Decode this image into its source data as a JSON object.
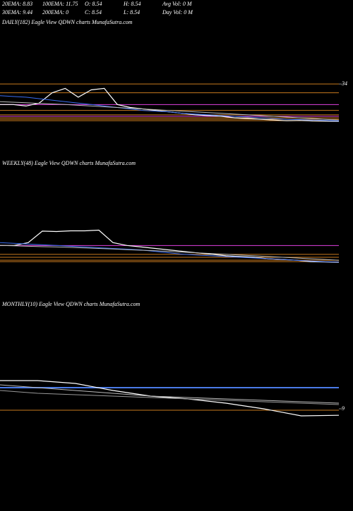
{
  "header": {
    "row1": [
      "20EMA: 8.83",
      "100EMA: 11.75",
      "O: 8.54",
      "H: 8.54",
      "Avg Vol: 0  M"
    ],
    "row2": [
      "30EMA: 9.44",
      "200EMA: 0",
      "C: 8.54",
      "L: 8.54",
      "Day Vol: 0  M"
    ]
  },
  "chart_data": [
    {
      "type": "line",
      "title": "DAILY(182) Eagle  View  QDWN  charts MunafaSutra.com",
      "ylim": [
        0,
        72
      ],
      "yticks": [
        34
      ],
      "levels": [
        {
          "color": "#c87a1e",
          "value": 34
        },
        {
          "color": "#c87a1e",
          "value": 28
        },
        {
          "color": "#e040e0",
          "value": 20
        },
        {
          "color": "#c87a1e",
          "value": 16
        },
        {
          "color": "#c87a1e",
          "value": 13
        },
        {
          "color": "#e040e0",
          "value": 12
        },
        {
          "color": "#c87a1e",
          "value": 11
        },
        {
          "color": "#c87a1e",
          "value": 10
        },
        {
          "color": "#c87a1e",
          "value": 9
        }
      ],
      "series": [
        {
          "color": "#ffffff",
          "values": [
            20,
            20,
            19,
            21,
            28,
            31,
            25,
            30,
            31,
            20,
            18,
            17,
            16,
            15,
            14,
            13,
            12.5,
            12,
            11,
            10.5,
            10,
            9.5,
            9,
            9.2,
            8.8,
            8.7,
            8.54
          ]
        },
        {
          "color": "#3a6cf0",
          "values": [
            26,
            25.5,
            25,
            24,
            23,
            22,
            21,
            20,
            19,
            18,
            17,
            16,
            15.5,
            15,
            14,
            13.5,
            13,
            12.5,
            12,
            11.5,
            11,
            10.5,
            10,
            9.8,
            9.5,
            9.2,
            8.9
          ]
        },
        {
          "color": "#bbbbbb",
          "values": [
            22,
            21.6,
            21.2,
            20.8,
            20.4,
            20,
            19.5,
            19,
            18.5,
            18,
            17.5,
            17,
            16.5,
            16,
            15.5,
            15,
            14.5,
            14,
            13.5,
            13,
            12.5,
            12,
            11.5,
            11,
            10.5,
            10,
            9.5
          ]
        }
      ]
    },
    {
      "type": "line",
      "title": "WEEKLY(48) Eagle  View  QDWN  charts MunafaSutra.com",
      "ylim": [
        0,
        72
      ],
      "yticks": [],
      "levels": [
        {
          "color": "#e040e0",
          "value": 20
        },
        {
          "color": "#c87a1e",
          "value": 14
        },
        {
          "color": "#c87a1e",
          "value": 12
        },
        {
          "color": "#c87a1e",
          "value": 10
        },
        {
          "color": "#c87a1e",
          "value": 9
        }
      ],
      "series": [
        {
          "color": "#ffffff",
          "values": [
            20,
            20,
            22,
            29.8,
            29.5,
            30,
            30,
            30.5,
            22,
            20,
            19,
            18,
            17,
            16,
            15,
            14,
            13,
            12.5,
            12,
            11,
            10.5,
            10,
            9,
            8.8,
            8.54
          ]
        },
        {
          "color": "#3a6cf0",
          "values": [
            22,
            21.5,
            21,
            20.5,
            20,
            19.5,
            19,
            18.5,
            18,
            17.5,
            17,
            16,
            15,
            14,
            13.5,
            13,
            12.5,
            12,
            11.5,
            11,
            10.5,
            10,
            9.5,
            9,
            8.8
          ]
        },
        {
          "color": "#bbbbbb",
          "values": [
            20,
            19.8,
            19.5,
            19.2,
            19,
            18.7,
            18.4,
            18,
            17.6,
            17.2,
            16.8,
            16.4,
            16,
            15.5,
            15,
            14.5,
            14,
            13.5,
            13,
            12.5,
            12,
            11.5,
            11,
            10.5,
            10
          ]
        }
      ]
    },
    {
      "type": "line",
      "title": "MONTHLY(10) Eagle  View  QDWN  charts MunafaSutra.com",
      "ylim": [
        8,
        16
      ],
      "yticks": [
        9
      ],
      "levels": [
        {
          "color": "#4a7be8",
          "value": 10.5
        },
        {
          "color": "#c87a1e",
          "value": 8.9
        }
      ],
      "series": [
        {
          "color": "#ffffff",
          "values": [
            11,
            11,
            10.8,
            10.3,
            9.9,
            9.7,
            9.4,
            9.0,
            8.5,
            8.54
          ]
        },
        {
          "color": "#bbbbbb",
          "values": [
            10.7,
            10.5,
            10.3,
            10.1,
            9.9,
            9.8,
            9.7,
            9.6,
            9.5,
            9.4
          ]
        },
        {
          "color": "#999999",
          "values": [
            10.3,
            10.1,
            10,
            9.9,
            9.8,
            9.7,
            9.6,
            9.5,
            9.4,
            9.3
          ]
        }
      ]
    }
  ]
}
